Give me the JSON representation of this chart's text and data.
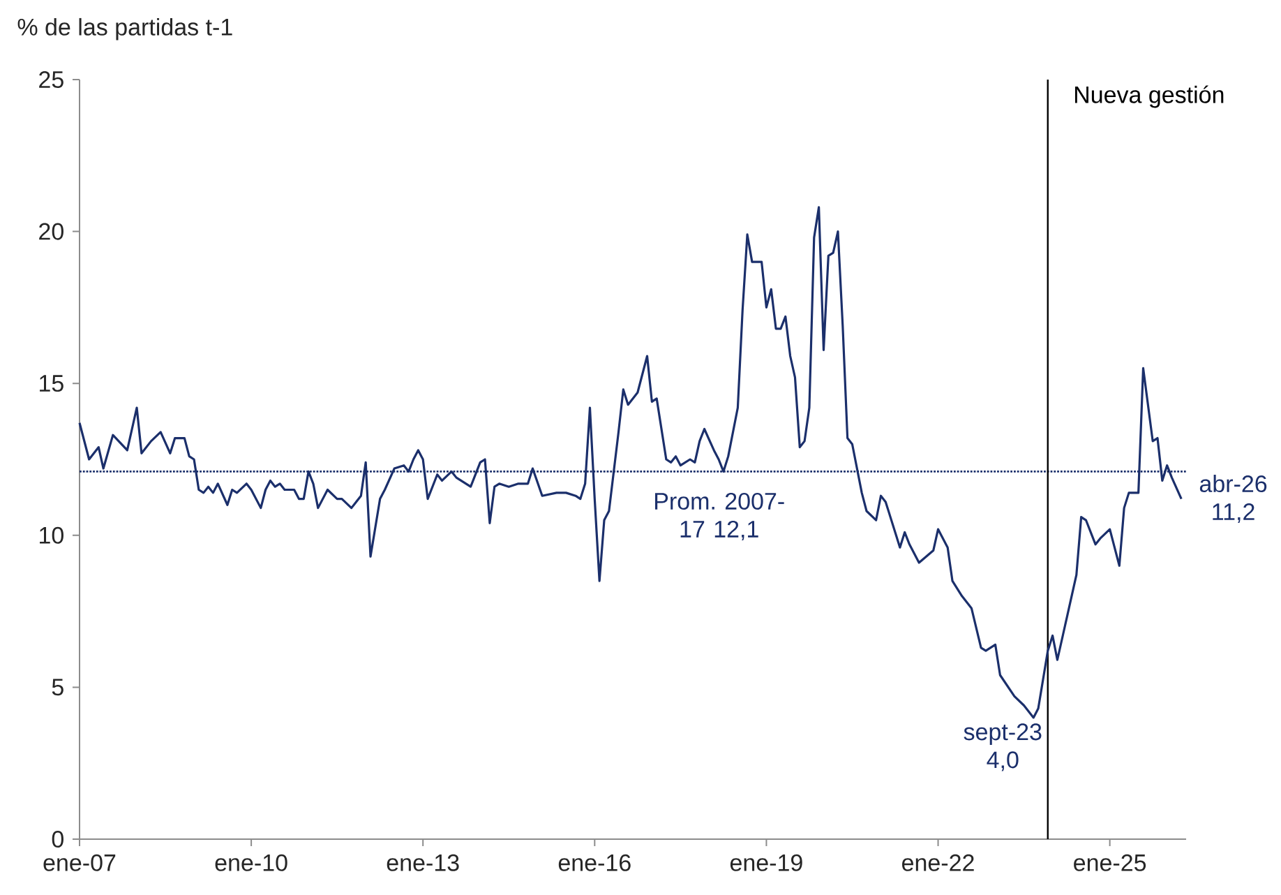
{
  "chart_data": {
    "type": "line",
    "ylabel": "% de las partidas t-1",
    "xlim": [
      "2007-01",
      "2026-05"
    ],
    "ylim": [
      0,
      25
    ],
    "yticks": [
      0,
      5,
      10,
      15,
      20,
      25
    ],
    "xticks": [
      {
        "value": "2007-01",
        "label": "ene-07"
      },
      {
        "value": "2010-01",
        "label": "ene-10"
      },
      {
        "value": "2013-01",
        "label": "ene-13"
      },
      {
        "value": "2016-01",
        "label": "ene-16"
      },
      {
        "value": "2019-01",
        "label": "ene-19"
      },
      {
        "value": "2022-01",
        "label": "ene-22"
      },
      {
        "value": "2025-01",
        "label": "ene-25"
      }
    ],
    "series": [
      {
        "color": "#1b2f6b",
        "x": [
          "2007-01",
          "2007-03",
          "2007-05",
          "2007-06",
          "2007-08",
          "2007-11",
          "2008-01",
          "2008-02",
          "2008-04",
          "2008-06",
          "2008-08",
          "2008-09",
          "2008-11",
          "2008-12",
          "2009-01",
          "2009-02",
          "2009-03",
          "2009-04",
          "2009-05",
          "2009-06",
          "2009-08",
          "2009-09",
          "2009-10",
          "2009-12",
          "2010-01",
          "2010-03",
          "2010-04",
          "2010-05",
          "2010-06",
          "2010-07",
          "2010-08",
          "2010-10",
          "2010-11",
          "2010-12",
          "2011-01",
          "2011-02",
          "2011-03",
          "2011-04",
          "2011-05",
          "2011-07",
          "2011-08",
          "2011-10",
          "2011-11",
          "2011-12",
          "2012-01",
          "2012-02",
          "2012-04",
          "2012-05",
          "2012-07",
          "2012-09",
          "2012-10",
          "2012-11",
          "2012-12",
          "2013-01",
          "2013-02",
          "2013-04",
          "2013-05",
          "2013-07",
          "2013-08",
          "2013-11",
          "2014-01",
          "2014-02",
          "2014-03",
          "2014-04",
          "2014-05",
          "2014-07",
          "2014-09",
          "2014-11",
          "2014-12",
          "2015-02",
          "2015-05",
          "2015-07",
          "2015-09",
          "2015-10",
          "2015-11",
          "2015-12",
          "2016-01",
          "2016-02",
          "2016-03",
          "2016-04",
          "2016-06",
          "2016-07",
          "2016-08",
          "2016-10",
          "2016-12",
          "2017-01",
          "2017-02",
          "2017-04",
          "2017-05",
          "2017-06",
          "2017-07",
          "2017-09",
          "2017-10",
          "2017-11",
          "2017-12",
          "2018-02",
          "2018-03",
          "2018-04",
          "2018-05",
          "2018-07",
          "2018-08",
          "2018-09",
          "2018-10",
          "2018-12",
          "2019-01",
          "2019-02",
          "2019-03",
          "2019-04",
          "2019-05",
          "2019-06",
          "2019-07",
          "2019-08",
          "2019-09",
          "2019-10",
          "2019-11",
          "2019-12",
          "2020-01",
          "2020-02",
          "2020-03",
          "2020-04",
          "2020-05",
          "2020-06",
          "2020-07",
          "2020-09",
          "2020-10",
          "2020-12",
          "2021-01",
          "2021-02",
          "2021-05",
          "2021-06",
          "2021-07",
          "2021-09",
          "2021-12",
          "2022-01",
          "2022-03",
          "2022-04",
          "2022-06",
          "2022-08",
          "2022-10",
          "2022-11",
          "2023-01",
          "2023-02",
          "2023-05",
          "2023-07",
          "2023-09",
          "2023-10",
          "2023-12",
          "2024-01",
          "2024-02",
          "2024-04",
          "2024-06",
          "2024-07",
          "2024-08",
          "2024-10",
          "2024-11",
          "2025-01",
          "2025-03",
          "2025-04",
          "2025-05",
          "2025-07",
          "2025-08",
          "2025-10",
          "2025-11",
          "2025-12",
          "2026-01",
          "2026-02",
          "2026-04"
        ],
        "values": [
          13.7,
          12.5,
          12.9,
          12.2,
          13.3,
          12.8,
          14.2,
          12.7,
          13.1,
          13.4,
          12.7,
          13.2,
          13.2,
          12.6,
          12.5,
          11.5,
          11.4,
          11.6,
          11.4,
          11.7,
          11.0,
          11.5,
          11.4,
          11.7,
          11.5,
          10.9,
          11.5,
          11.8,
          11.6,
          11.7,
          11.5,
          11.5,
          11.2,
          11.2,
          12.1,
          11.7,
          10.9,
          11.2,
          11.5,
          11.2,
          11.2,
          10.9,
          11.1,
          11.3,
          12.4,
          9.3,
          11.2,
          11.5,
          12.2,
          12.3,
          12.1,
          12.5,
          12.8,
          12.5,
          11.2,
          12.0,
          11.8,
          12.1,
          11.9,
          11.6,
          12.4,
          12.5,
          10.4,
          11.6,
          11.7,
          11.6,
          11.7,
          11.7,
          12.2,
          11.3,
          11.4,
          11.4,
          11.3,
          11.2,
          11.7,
          14.2,
          11.2,
          8.5,
          10.5,
          10.8,
          13.4,
          14.8,
          14.3,
          14.7,
          15.9,
          14.4,
          14.5,
          12.5,
          12.4,
          12.6,
          12.3,
          12.5,
          12.4,
          13.1,
          13.5,
          12.8,
          12.5,
          12.1,
          12.6,
          14.2,
          17.4,
          19.9,
          19.0,
          19.0,
          17.5,
          18.1,
          16.8,
          16.8,
          17.2,
          15.9,
          15.2,
          12.9,
          13.1,
          14.2,
          19.8,
          20.8,
          16.1,
          19.2,
          19.3,
          20.0,
          16.9,
          13.2,
          13.0,
          11.4,
          10.8,
          10.5,
          11.3,
          11.1,
          9.6,
          10.1,
          9.7,
          9.1,
          9.5,
          10.2,
          9.6,
          8.5,
          8.0,
          7.6,
          6.3,
          6.2,
          6.4,
          5.4,
          4.7,
          4.4,
          4.0,
          4.3,
          6.2,
          6.7,
          5.9,
          7.3,
          8.7,
          10.6,
          10.5,
          9.7,
          9.9,
          10.2,
          9.0,
          10.9,
          11.4,
          11.4,
          15.5,
          13.1,
          13.2,
          11.8,
          12.3,
          11.9,
          11.2
        ]
      }
    ],
    "ref_lines": [
      {
        "axis": "y",
        "value": 12.1,
        "label": "Prom. 2007-17 12,1",
        "color": "#1b2f6b",
        "line_style": "dotted"
      },
      {
        "axis": "x",
        "value": "2023-12",
        "label": "Nueva gestión",
        "color": "#000000",
        "line_style": "solid"
      }
    ],
    "annotations": [
      {
        "text": "sept-23 4,0",
        "x": "2023-09",
        "y": 4.0
      },
      {
        "text": "abr-26 11,2",
        "x": "2026-04",
        "y": 11.2
      }
    ]
  }
}
